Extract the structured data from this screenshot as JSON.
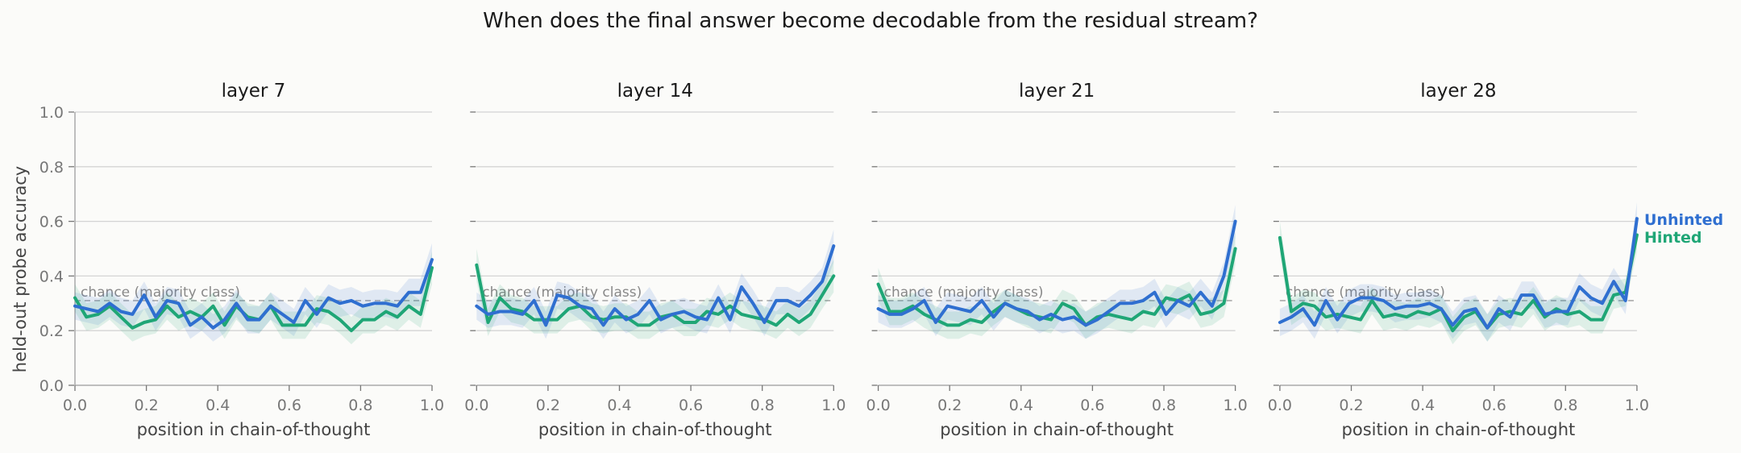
{
  "figure_title": "When does the final answer become decodable from the residual stream?",
  "colors": {
    "unhinted": "#2f6fd0",
    "hinted": "#1fa676",
    "grid": "#d4d4d4",
    "chance_line": "#aaaaaa"
  },
  "chart_data": {
    "type": "line",
    "ylabel": "held-out probe accuracy",
    "xlabel": "position in chain-of-thought",
    "xlim": [
      0,
      1
    ],
    "ylim": [
      0,
      1
    ],
    "x_ticks": [
      "0.0",
      "0.2",
      "0.4",
      "0.6",
      "0.8",
      "1.0"
    ],
    "y_ticks": [
      "0.0",
      "0.2",
      "0.4",
      "0.6",
      "0.8",
      "1.0"
    ],
    "grid": "horizontal",
    "chance": {
      "value": 0.31,
      "label": "chance (majority class)"
    },
    "legend": {
      "placement": "right",
      "entries": [
        "Unhinted",
        "Hinted"
      ]
    },
    "x": [
      0.0,
      0.032,
      0.065,
      0.097,
      0.129,
      0.161,
      0.194,
      0.226,
      0.258,
      0.29,
      0.323,
      0.355,
      0.387,
      0.419,
      0.452,
      0.484,
      0.516,
      0.548,
      0.581,
      0.613,
      0.645,
      0.677,
      0.71,
      0.742,
      0.774,
      0.806,
      0.839,
      0.871,
      0.903,
      0.935,
      0.968,
      1.0
    ],
    "panels": [
      {
        "title": "layer 7",
        "series": [
          {
            "name": "Unhinted",
            "values": [
              0.29,
              0.28,
              0.27,
              0.3,
              0.27,
              0.26,
              0.33,
              0.25,
              0.31,
              0.3,
              0.22,
              0.25,
              0.21,
              0.24,
              0.3,
              0.24,
              0.24,
              0.29,
              0.26,
              0.23,
              0.31,
              0.26,
              0.32,
              0.3,
              0.31,
              0.29,
              0.3,
              0.3,
              0.29,
              0.34,
              0.34,
              0.46
            ],
            "band": [
              0.05,
              0.05,
              0.05,
              0.05,
              0.05,
              0.05,
              0.05,
              0.05,
              0.05,
              0.05,
              0.05,
              0.05,
              0.05,
              0.05,
              0.05,
              0.05,
              0.05,
              0.05,
              0.05,
              0.05,
              0.05,
              0.05,
              0.05,
              0.05,
              0.05,
              0.05,
              0.05,
              0.05,
              0.05,
              0.05,
              0.05,
              0.06
            ]
          },
          {
            "name": "Hinted",
            "values": [
              0.32,
              0.25,
              0.26,
              0.29,
              0.25,
              0.21,
              0.23,
              0.24,
              0.29,
              0.25,
              0.27,
              0.25,
              0.29,
              0.22,
              0.29,
              0.25,
              0.24,
              0.29,
              0.22,
              0.22,
              0.22,
              0.28,
              0.27,
              0.24,
              0.2,
              0.24,
              0.24,
              0.27,
              0.25,
              0.29,
              0.26,
              0.43
            ],
            "band": [
              0.05,
              0.05,
              0.05,
              0.05,
              0.05,
              0.05,
              0.05,
              0.05,
              0.05,
              0.05,
              0.05,
              0.05,
              0.05,
              0.05,
              0.05,
              0.05,
              0.05,
              0.05,
              0.05,
              0.05,
              0.05,
              0.05,
              0.05,
              0.05,
              0.05,
              0.05,
              0.05,
              0.05,
              0.05,
              0.05,
              0.05,
              0.06
            ]
          }
        ]
      },
      {
        "title": "layer 14",
        "series": [
          {
            "name": "Unhinted",
            "values": [
              0.29,
              0.26,
              0.27,
              0.27,
              0.26,
              0.31,
              0.22,
              0.33,
              0.32,
              0.29,
              0.28,
              0.22,
              0.28,
              0.24,
              0.26,
              0.31,
              0.24,
              0.26,
              0.27,
              0.25,
              0.24,
              0.32,
              0.24,
              0.36,
              0.3,
              0.23,
              0.31,
              0.31,
              0.29,
              0.33,
              0.38,
              0.51
            ],
            "band": [
              0.05,
              0.05,
              0.05,
              0.05,
              0.05,
              0.05,
              0.05,
              0.05,
              0.05,
              0.05,
              0.05,
              0.05,
              0.05,
              0.05,
              0.05,
              0.05,
              0.05,
              0.05,
              0.05,
              0.05,
              0.05,
              0.05,
              0.05,
              0.05,
              0.05,
              0.05,
              0.05,
              0.05,
              0.05,
              0.05,
              0.05,
              0.06
            ]
          },
          {
            "name": "Hinted",
            "values": [
              0.44,
              0.23,
              0.32,
              0.28,
              0.27,
              0.24,
              0.24,
              0.24,
              0.28,
              0.29,
              0.25,
              0.24,
              0.25,
              0.25,
              0.22,
              0.22,
              0.25,
              0.26,
              0.23,
              0.23,
              0.27,
              0.26,
              0.29,
              0.26,
              0.25,
              0.24,
              0.22,
              0.26,
              0.23,
              0.26,
              0.33,
              0.4
            ],
            "band": [
              0.06,
              0.05,
              0.05,
              0.05,
              0.05,
              0.05,
              0.05,
              0.05,
              0.05,
              0.05,
              0.05,
              0.05,
              0.05,
              0.05,
              0.05,
              0.05,
              0.05,
              0.05,
              0.05,
              0.05,
              0.05,
              0.05,
              0.05,
              0.05,
              0.05,
              0.05,
              0.05,
              0.05,
              0.05,
              0.05,
              0.05,
              0.06
            ]
          }
        ]
      },
      {
        "title": "layer 21",
        "series": [
          {
            "name": "Unhinted",
            "values": [
              0.28,
              0.26,
              0.26,
              0.28,
              0.31,
              0.23,
              0.29,
              0.28,
              0.27,
              0.31,
              0.25,
              0.3,
              0.28,
              0.27,
              0.24,
              0.26,
              0.24,
              0.25,
              0.22,
              0.24,
              0.27,
              0.3,
              0.3,
              0.31,
              0.34,
              0.26,
              0.31,
              0.29,
              0.34,
              0.29,
              0.4,
              0.6
            ],
            "band": [
              0.05,
              0.05,
              0.05,
              0.05,
              0.05,
              0.05,
              0.05,
              0.05,
              0.05,
              0.05,
              0.05,
              0.05,
              0.05,
              0.05,
              0.05,
              0.05,
              0.05,
              0.05,
              0.05,
              0.05,
              0.05,
              0.05,
              0.05,
              0.05,
              0.05,
              0.05,
              0.05,
              0.05,
              0.05,
              0.05,
              0.05,
              0.06
            ]
          },
          {
            "name": "Hinted",
            "values": [
              0.37,
              0.27,
              0.27,
              0.29,
              0.26,
              0.24,
              0.22,
              0.22,
              0.24,
              0.23,
              0.27,
              0.3,
              0.28,
              0.26,
              0.25,
              0.24,
              0.3,
              0.28,
              0.22,
              0.25,
              0.26,
              0.25,
              0.24,
              0.27,
              0.26,
              0.32,
              0.31,
              0.33,
              0.26,
              0.27,
              0.3,
              0.5
            ],
            "band": [
              0.06,
              0.05,
              0.05,
              0.05,
              0.05,
              0.05,
              0.05,
              0.05,
              0.05,
              0.05,
              0.05,
              0.05,
              0.05,
              0.05,
              0.05,
              0.05,
              0.05,
              0.05,
              0.05,
              0.05,
              0.05,
              0.05,
              0.05,
              0.05,
              0.05,
              0.05,
              0.05,
              0.05,
              0.05,
              0.05,
              0.05,
              0.06
            ]
          }
        ]
      },
      {
        "title": "layer 28",
        "series": [
          {
            "name": "Unhinted",
            "values": [
              0.23,
              0.25,
              0.28,
              0.22,
              0.31,
              0.24,
              0.3,
              0.32,
              0.32,
              0.31,
              0.28,
              0.29,
              0.29,
              0.3,
              0.28,
              0.22,
              0.27,
              0.28,
              0.21,
              0.28,
              0.25,
              0.33,
              0.33,
              0.26,
              0.27,
              0.27,
              0.36,
              0.32,
              0.3,
              0.38,
              0.31,
              0.61
            ],
            "band": [
              0.05,
              0.05,
              0.05,
              0.05,
              0.05,
              0.05,
              0.05,
              0.05,
              0.05,
              0.05,
              0.05,
              0.05,
              0.05,
              0.05,
              0.05,
              0.05,
              0.05,
              0.05,
              0.05,
              0.05,
              0.05,
              0.05,
              0.05,
              0.05,
              0.05,
              0.05,
              0.05,
              0.05,
              0.05,
              0.05,
              0.05,
              0.06
            ]
          },
          {
            "name": "Hinted",
            "values": [
              0.54,
              0.27,
              0.3,
              0.29,
              0.25,
              0.26,
              0.25,
              0.24,
              0.31,
              0.25,
              0.26,
              0.25,
              0.27,
              0.26,
              0.28,
              0.2,
              0.25,
              0.27,
              0.21,
              0.26,
              0.27,
              0.26,
              0.31,
              0.25,
              0.28,
              0.26,
              0.27,
              0.24,
              0.24,
              0.33,
              0.34,
              0.55
            ],
            "band": [
              0.06,
              0.05,
              0.05,
              0.05,
              0.05,
              0.05,
              0.05,
              0.05,
              0.05,
              0.05,
              0.05,
              0.05,
              0.05,
              0.05,
              0.05,
              0.05,
              0.05,
              0.05,
              0.05,
              0.05,
              0.05,
              0.05,
              0.05,
              0.05,
              0.05,
              0.05,
              0.05,
              0.05,
              0.05,
              0.05,
              0.05,
              0.06
            ]
          }
        ]
      }
    ]
  }
}
